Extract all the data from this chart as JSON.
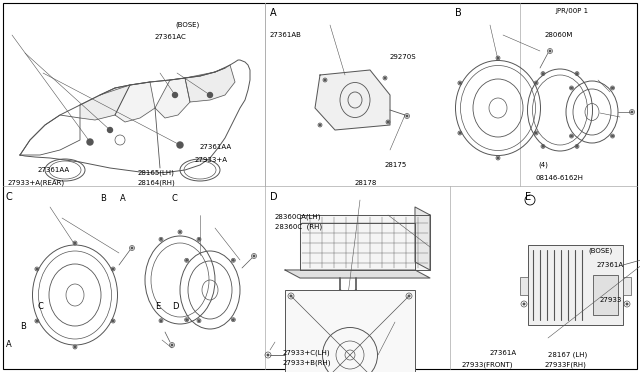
{
  "bg": "#ffffff",
  "lc": "#555555",
  "tc": "#000000",
  "border": "#000000",
  "figsize": [
    6.4,
    3.72
  ],
  "dpi": 100,
  "sections": {
    "A_labels": [
      "A",
      "27933+B(RH)",
      "27933+C(LH)",
      "28360C  (RH)",
      "28360CA(LH)"
    ],
    "B_labels": [
      "B",
      "27933(FRONT)",
      "27361A",
      "27933F(RH)",
      "28167 (LH)",
      "27933",
      "27361A",
      "(BOSE)"
    ],
    "C_labels": [
      "C",
      "27933+A(REAR)",
      "27361AA",
      "28164(RH)",
      "28165(LH)",
      "27933+A",
      "27361AA",
      "27361AC",
      "(BOSE)"
    ],
    "D_labels": [
      "D",
      "28178",
      "28175",
      "29270S",
      "27361AB"
    ],
    "E_labels": [
      "E",
      "08146-6162H",
      "(4)",
      "28060M"
    ]
  },
  "footer": "JPR/00P 1"
}
